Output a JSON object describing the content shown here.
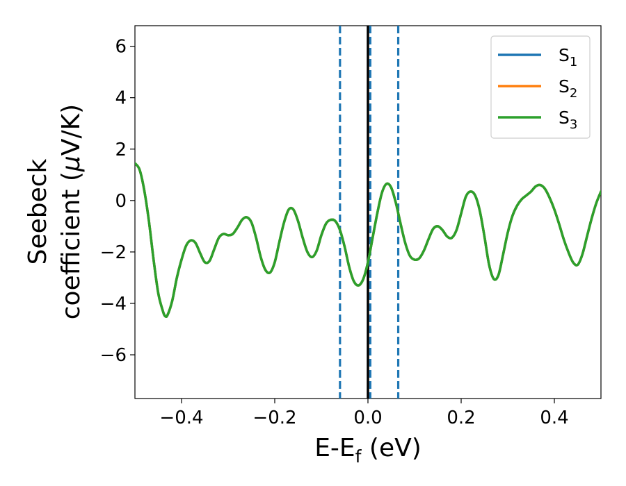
{
  "chart_data": {
    "type": "line",
    "title": "",
    "xlabel": {
      "main": "E-E",
      "sub": "f",
      "suffix": " (eV)"
    },
    "ylabel": {
      "line1": "Seebeck",
      "line2_pre": "coefficient  (",
      "mu": "μ",
      "line2_post": "V/K)"
    },
    "xlim": [
      -0.5,
      0.5
    ],
    "ylim": [
      -7.7,
      6.8
    ],
    "xticks": [
      -0.4,
      -0.2,
      0.0,
      0.2,
      0.4
    ],
    "xtick_labels": [
      "−0.4",
      "−0.2",
      "0.0",
      "0.2",
      "0.4"
    ],
    "yticks": [
      6,
      4,
      2,
      0,
      -2,
      -4,
      -6
    ],
    "ytick_labels": [
      "6",
      "4",
      "2",
      "0",
      "−2",
      "−4",
      "−6"
    ],
    "grid": false,
    "legend_position": "top-right",
    "series": [
      {
        "name": "S",
        "sub": "1",
        "color": "#1f77b4",
        "values_ref": "curve"
      },
      {
        "name": "S",
        "sub": "2",
        "color": "#ff7f0e",
        "values_ref": "curve"
      },
      {
        "name": "S",
        "sub": "3",
        "color": "#2ca02c",
        "values_ref": "curve"
      }
    ],
    "curve": {
      "x": [
        -0.5,
        -0.49,
        -0.48,
        -0.47,
        -0.46,
        -0.45,
        -0.44,
        -0.435,
        -0.43,
        -0.42,
        -0.41,
        -0.4,
        -0.39,
        -0.38,
        -0.37,
        -0.36,
        -0.35,
        -0.34,
        -0.33,
        -0.32,
        -0.31,
        -0.3,
        -0.29,
        -0.28,
        -0.27,
        -0.26,
        -0.25,
        -0.24,
        -0.23,
        -0.22,
        -0.21,
        -0.2,
        -0.19,
        -0.18,
        -0.17,
        -0.16,
        -0.15,
        -0.14,
        -0.13,
        -0.12,
        -0.11,
        -0.1,
        -0.09,
        -0.08,
        -0.07,
        -0.06,
        -0.05,
        -0.04,
        -0.03,
        -0.02,
        -0.01,
        0.0,
        0.01,
        0.02,
        0.03,
        0.04,
        0.05,
        0.06,
        0.07,
        0.08,
        0.09,
        0.1,
        0.11,
        0.12,
        0.13,
        0.14,
        0.15,
        0.16,
        0.17,
        0.18,
        0.19,
        0.2,
        0.21,
        0.22,
        0.23,
        0.24,
        0.25,
        0.26,
        0.27,
        0.28,
        0.29,
        0.3,
        0.31,
        0.32,
        0.33,
        0.34,
        0.35,
        0.36,
        0.37,
        0.38,
        0.39,
        0.4,
        0.41,
        0.42,
        0.43,
        0.44,
        0.45,
        0.46,
        0.47,
        0.48,
        0.49,
        0.5
      ],
      "y": [
        1.45,
        1.2,
        0.4,
        -0.8,
        -2.3,
        -3.6,
        -4.3,
        -4.5,
        -4.45,
        -3.9,
        -3.0,
        -2.3,
        -1.75,
        -1.55,
        -1.65,
        -2.05,
        -2.4,
        -2.35,
        -1.9,
        -1.45,
        -1.3,
        -1.35,
        -1.3,
        -1.05,
        -0.75,
        -0.65,
        -0.85,
        -1.45,
        -2.2,
        -2.7,
        -2.8,
        -2.4,
        -1.6,
        -0.85,
        -0.35,
        -0.35,
        -0.8,
        -1.45,
        -2.0,
        -2.2,
        -1.95,
        -1.35,
        -0.9,
        -0.75,
        -0.8,
        -1.15,
        -1.8,
        -2.6,
        -3.15,
        -3.3,
        -3.05,
        -2.4,
        -1.45,
        -0.5,
        0.3,
        0.65,
        0.5,
        -0.1,
        -0.9,
        -1.65,
        -2.15,
        -2.3,
        -2.25,
        -1.95,
        -1.5,
        -1.1,
        -1.0,
        -1.15,
        -1.4,
        -1.45,
        -1.15,
        -0.5,
        0.15,
        0.35,
        0.2,
        -0.4,
        -1.4,
        -2.5,
        -3.05,
        -2.9,
        -2.1,
        -1.25,
        -0.6,
        -0.2,
        0.05,
        0.2,
        0.35,
        0.55,
        0.6,
        0.45,
        0.1,
        -0.35,
        -0.9,
        -1.5,
        -2.0,
        -2.4,
        -2.5,
        -2.1,
        -1.4,
        -0.7,
        -0.1,
        0.35
      ]
    },
    "vlines": [
      {
        "x": -0.06,
        "color": "#1f77b4",
        "style": "dashed"
      },
      {
        "x": 0.005,
        "color": "#1f77b4",
        "style": "dashed"
      },
      {
        "x": 0.065,
        "color": "#1f77b4",
        "style": "dashed"
      },
      {
        "x": 0.0,
        "color": "#000000",
        "style": "solid"
      }
    ]
  }
}
